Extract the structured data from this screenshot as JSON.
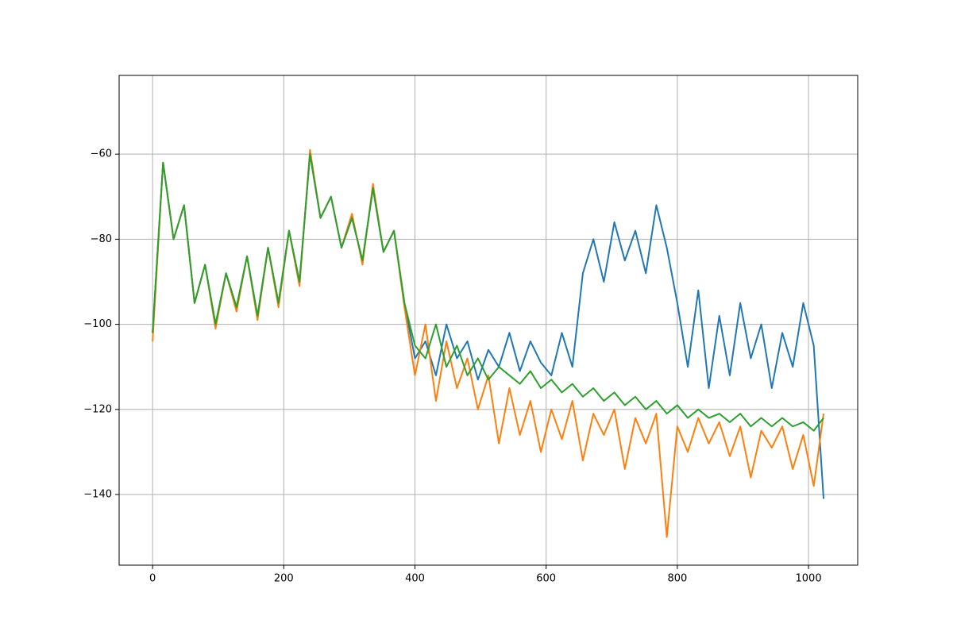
{
  "chart_data": {
    "type": "line",
    "x": [
      0,
      16,
      32,
      48,
      64,
      80,
      96,
      112,
      128,
      144,
      160,
      176,
      192,
      208,
      224,
      240,
      256,
      272,
      288,
      304,
      320,
      336,
      352,
      368,
      384,
      400,
      416,
      432,
      448,
      464,
      480,
      496,
      512,
      528,
      544,
      560,
      576,
      592,
      608,
      624,
      640,
      656,
      672,
      688,
      704,
      720,
      736,
      752,
      768,
      784,
      800,
      816,
      832,
      848,
      864,
      880,
      896,
      912,
      928,
      944,
      960,
      976,
      992,
      1008,
      1023
    ],
    "series": [
      {
        "color": "#1f77b4",
        "values": [
          -102,
          -62,
          -80,
          -72,
          -95,
          -86,
          -100,
          -88,
          -96,
          -84,
          -98,
          -82,
          -95,
          -78,
          -90,
          -60,
          -75,
          -70,
          -82,
          -75,
          -85,
          -68,
          -83,
          -78,
          -95,
          -108,
          -104,
          -112,
          -100,
          -108,
          -104,
          -113,
          -106,
          -110,
          -102,
          -111,
          -104,
          -109,
          -112,
          -102,
          -110,
          -88,
          -80,
          -90,
          -76,
          -85,
          -78,
          -88,
          -72,
          -82,
          -95,
          -110,
          -92,
          -115,
          -98,
          -112,
          -95,
          -108,
          -100,
          -115,
          -102,
          -110,
          -95,
          -105,
          -141
        ]
      },
      {
        "color": "#ff7f0e",
        "values": [
          -104,
          -62,
          -80,
          -72,
          -95,
          -86,
          -101,
          -88,
          -97,
          -84,
          -99,
          -82,
          -96,
          -78,
          -91,
          -59,
          -75,
          -70,
          -82,
          -74,
          -86,
          -67,
          -83,
          -78,
          -96,
          -112,
          -100,
          -118,
          -104,
          -115,
          -108,
          -120,
          -112,
          -128,
          -115,
          -126,
          -118,
          -130,
          -120,
          -127,
          -118,
          -132,
          -121,
          -126,
          -120,
          -134,
          -122,
          -128,
          -121,
          -150,
          -124,
          -130,
          -122,
          -128,
          -123,
          -131,
          -124,
          -136,
          -125,
          -129,
          -124,
          -134,
          -126,
          -138,
          -121
        ]
      },
      {
        "color": "#2ca02c",
        "values": [
          -102,
          -62,
          -80,
          -72,
          -95,
          -86,
          -100,
          -88,
          -96,
          -84,
          -98,
          -82,
          -95,
          -78,
          -90,
          -60,
          -75,
          -70,
          -82,
          -75,
          -85,
          -68,
          -83,
          -78,
          -95,
          -105,
          -108,
          -100,
          -110,
          -105,
          -112,
          -108,
          -113,
          -110,
          -112,
          -114,
          -111,
          -115,
          -113,
          -116,
          -114,
          -117,
          -115,
          -118,
          -116,
          -119,
          -117,
          -120,
          -118,
          -121,
          -119,
          -122,
          -120,
          -122,
          -121,
          -123,
          -121,
          -124,
          -122,
          -124,
          -122,
          -124,
          -123,
          -125,
          -122
        ]
      }
    ],
    "xlim": [
      -51,
      1075
    ],
    "ylim": [
      -156.6,
      -41.5
    ],
    "xticks": [
      0,
      200,
      400,
      600,
      800,
      1000
    ],
    "yticks": [
      {
        "value": -60,
        "label": "−60"
      },
      {
        "value": -80,
        "label": "−80"
      },
      {
        "value": -100,
        "label": "−100"
      },
      {
        "value": -120,
        "label": "−120"
      },
      {
        "value": -140,
        "label": "−140"
      }
    ],
    "grid": true
  }
}
